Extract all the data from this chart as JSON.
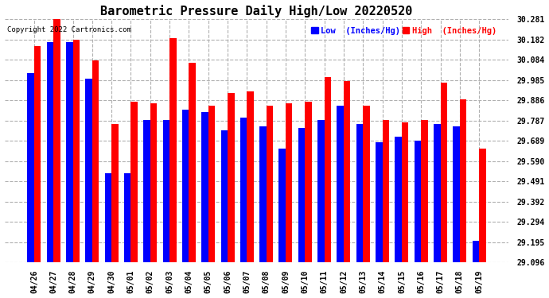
{
  "title": "Barometric Pressure Daily High/Low 20220520",
  "copyright": "Copyright 2022 Cartronics.com",
  "legend_low": "Low  (Inches/Hg)",
  "legend_high": "High  (Inches/Hg)",
  "dates": [
    "04/26",
    "04/27",
    "04/28",
    "04/29",
    "04/30",
    "05/01",
    "05/02",
    "05/03",
    "05/04",
    "05/05",
    "05/06",
    "05/07",
    "05/08",
    "05/09",
    "05/10",
    "05/11",
    "05/12",
    "05/13",
    "05/14",
    "05/15",
    "05/16",
    "05/17",
    "05/18",
    "05/19"
  ],
  "high_values": [
    30.15,
    30.28,
    30.18,
    30.08,
    29.77,
    29.88,
    29.87,
    30.19,
    30.07,
    29.86,
    29.92,
    29.93,
    29.86,
    29.87,
    29.88,
    30.0,
    29.98,
    29.86,
    29.79,
    29.78,
    29.79,
    29.97,
    29.89,
    29.65
  ],
  "low_values": [
    30.02,
    30.17,
    30.17,
    29.99,
    29.53,
    29.53,
    29.79,
    29.79,
    29.84,
    29.83,
    29.74,
    29.8,
    29.76,
    29.65,
    29.75,
    29.79,
    29.86,
    29.77,
    29.68,
    29.71,
    29.69,
    29.77,
    29.76,
    29.2
  ],
  "ylim_min": 29.096,
  "ylim_max": 30.281,
  "yticks": [
    29.096,
    29.195,
    29.294,
    29.392,
    29.491,
    29.59,
    29.689,
    29.787,
    29.886,
    29.985,
    30.084,
    30.182,
    30.281
  ],
  "bar_color_high": "#ff0000",
  "bar_color_low": "#0000ff",
  "background_color": "#ffffff",
  "plot_bg_color": "#ffffff",
  "grid_color": "#b0b0b0",
  "title_fontsize": 11,
  "tick_fontsize": 7,
  "bar_width": 0.35
}
